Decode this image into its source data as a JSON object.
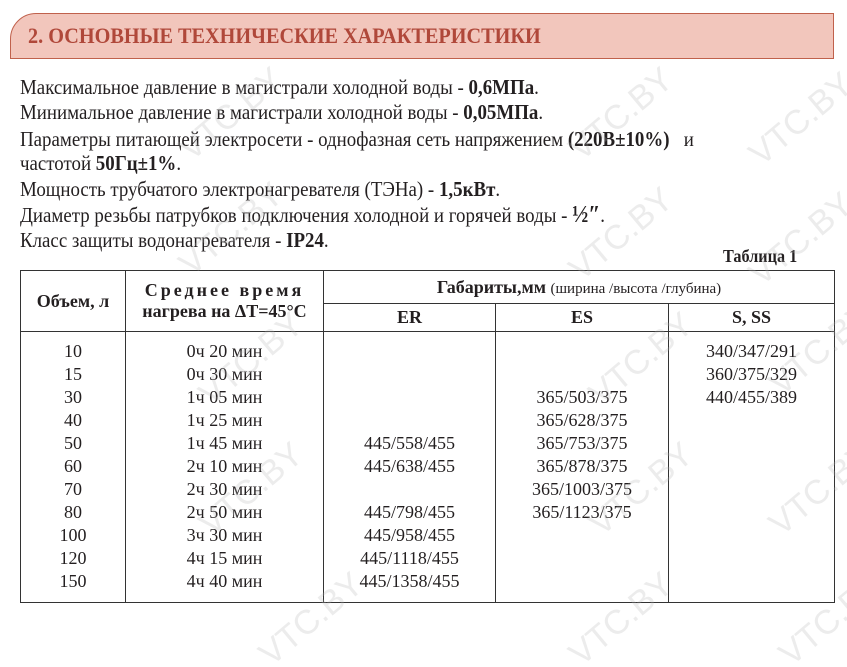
{
  "section_title": "2. ОСНОВНЫЕ ТЕХНИЧЕСКИЕ ХАРАКТЕРИСТИКИ",
  "specs": [
    {
      "text": "Максимальное давление в магистрали холодной воды - ",
      "value": "0,6МПа",
      "tail": "."
    },
    {
      "text": "Минимальное давление в магистрали холодной воды - ",
      "value": "0,05МПа",
      "tail": "."
    },
    {
      "text": "Параметры питающей электросети - однофазная сеть напряжением ",
      "value": "(220В±10%)",
      "tail": "   и"
    },
    {
      "text": "частотой ",
      "value": "50Гц±1%",
      "tail": "."
    },
    {
      "text": "Мощность трубчатого электронагревателя (ТЭНа) - ",
      "value": "1,5кВт",
      "tail": "."
    },
    {
      "text": "Диаметр резьбы патрубков подключения холодной и горячей воды - ",
      "value": "½″",
      "tail": "."
    },
    {
      "text": "Класс защиты водонагревателя - ",
      "value": "IP24",
      "tail": "."
    }
  ],
  "table": {
    "caption": "Таблица 1",
    "col_volume": "Объем, л",
    "col_time_1": "Среднее время",
    "col_time_2": "нагрева на ΔT=45°С",
    "col_dims": "Габариты,мм",
    "col_dims_note": "(ширина /высота /глубина)",
    "sub_er": "ER",
    "sub_es": "ES",
    "sub_s": "S, SS",
    "rows": [
      {
        "volume": "10",
        "time": "0ч 20 мин",
        "er": "",
        "es": "",
        "s": "340/347/291"
      },
      {
        "volume": "15",
        "time": "0ч 30 мин",
        "er": "",
        "es": "",
        "s": "360/375/329"
      },
      {
        "volume": "30",
        "time": "1ч 05 мин",
        "er": "",
        "es": "365/503/375",
        "s": "440/455/389"
      },
      {
        "volume": "40",
        "time": "1ч 25 мин",
        "er": "",
        "es": "365/628/375",
        "s": ""
      },
      {
        "volume": "50",
        "time": "1ч 45 мин",
        "er": "445/558/455",
        "es": "365/753/375",
        "s": ""
      },
      {
        "volume": "60",
        "time": "2ч 10 мин",
        "er": "445/638/455",
        "es": "365/878/375",
        "s": ""
      },
      {
        "volume": "70",
        "time": "2ч 30 мин",
        "er": "",
        "es": "365/1003/375",
        "s": ""
      },
      {
        "volume": "80",
        "time": "2ч 50 мин",
        "er": "445/798/455",
        "es": "365/1123/375",
        "s": ""
      },
      {
        "volume": "100",
        "time": "3ч 30 мин",
        "er": "445/958/455",
        "es": "",
        "s": ""
      },
      {
        "volume": "120",
        "time": "4ч 15 мин",
        "er": "445/1118/455",
        "es": "",
        "s": ""
      },
      {
        "volume": "150",
        "time": "4ч 40 мин",
        "er": "445/1358/455",
        "es": "",
        "s": ""
      }
    ]
  },
  "watermark": "VTC.BY",
  "colors": {
    "banner_fill": "#f2c6bc",
    "banner_border": "#c0614c",
    "banner_text": "#b0483a"
  }
}
